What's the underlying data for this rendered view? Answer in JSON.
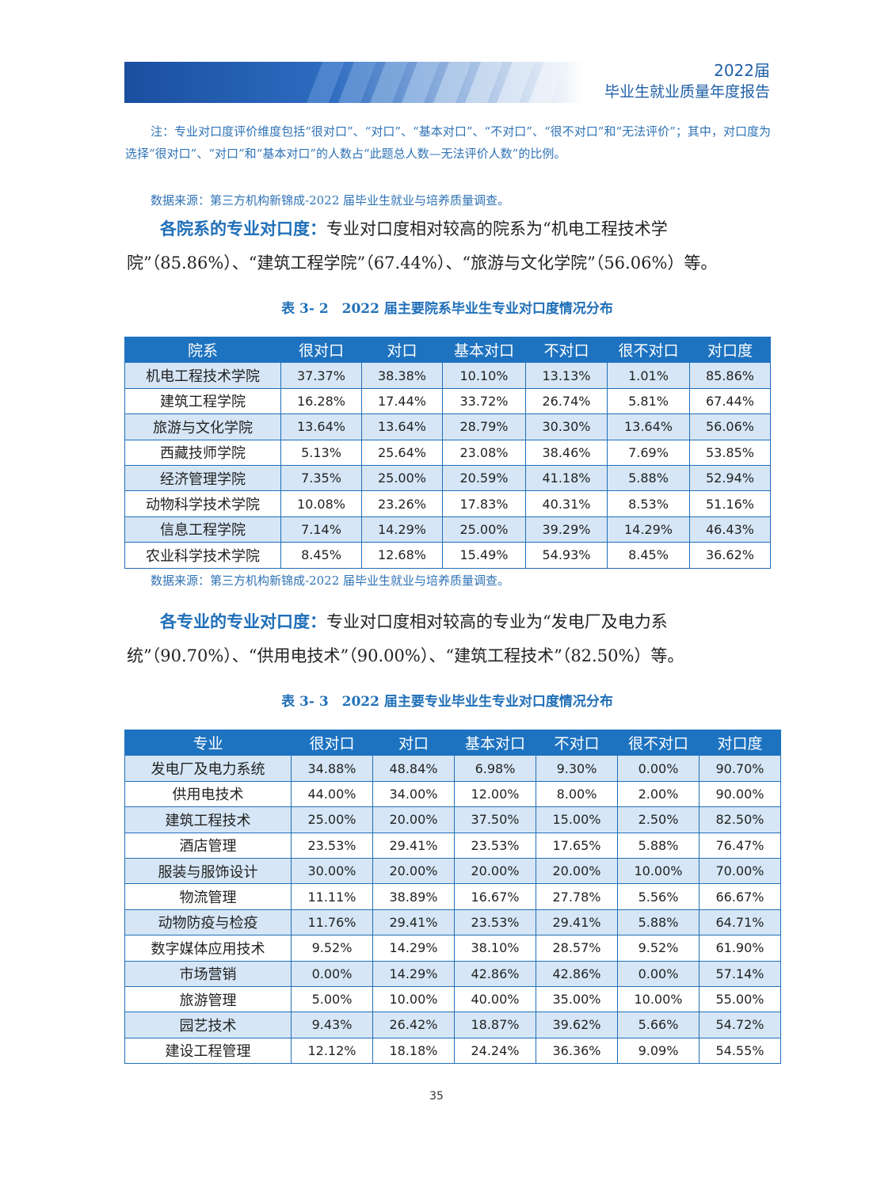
{
  "header": {
    "line1": "2022届",
    "line2": "毕业生就业质量年度报告"
  },
  "note1": "注：专业对口度评价维度包括“很对口”、“对口”、“基本对口”、“不对口”、“很不对口”和“无法评价”；其中，对口度为选择“很对口”、“对口”和“基本对口”的人数占“此题总人数—无法评价人数”的比例。",
  "source1": "数据来源：第三方机构新锦成-2022 届毕业生就业与培养质量调查。",
  "para1": {
    "lead": "各院系的专业对口度：",
    "text": "专业对口度相对较高的院系为“机电工程技术学院”（85.86%）、“建筑工程学院”（67.44%）、“旅游与文化学院”（56.06%）等。"
  },
  "table2": {
    "caption": "表 3- 2　2022 届主要院系毕业生专业对口度情况分布",
    "headers": [
      "院系",
      "很对口",
      "对口",
      "基本对口",
      "不对口",
      "很不对口",
      "对口度"
    ],
    "rows": [
      [
        "机电工程技术学院",
        "37.37%",
        "38.38%",
        "10.10%",
        "13.13%",
        "1.01%",
        "85.86%"
      ],
      [
        "建筑工程学院",
        "16.28%",
        "17.44%",
        "33.72%",
        "26.74%",
        "5.81%",
        "67.44%"
      ],
      [
        "旅游与文化学院",
        "13.64%",
        "13.64%",
        "28.79%",
        "30.30%",
        "13.64%",
        "56.06%"
      ],
      [
        "西藏技师学院",
        "5.13%",
        "25.64%",
        "23.08%",
        "38.46%",
        "7.69%",
        "53.85%"
      ],
      [
        "经济管理学院",
        "7.35%",
        "25.00%",
        "20.59%",
        "41.18%",
        "5.88%",
        "52.94%"
      ],
      [
        "动物科学技术学院",
        "10.08%",
        "23.26%",
        "17.83%",
        "40.31%",
        "8.53%",
        "51.16%"
      ],
      [
        "信息工程学院",
        "7.14%",
        "14.29%",
        "25.00%",
        "39.29%",
        "14.29%",
        "46.43%"
      ],
      [
        "农业科学技术学院",
        "8.45%",
        "12.68%",
        "15.49%",
        "54.93%",
        "8.45%",
        "36.62%"
      ]
    ]
  },
  "source2": "数据来源：第三方机构新锦成-2022 届毕业生就业与培养质量调查。",
  "para2": {
    "lead": "各专业的专业对口度：",
    "text": "专业对口度相对较高的专业为“发电厂及电力系统”（90.70%）、“供用电技术”（90.00%）、“建筑工程技术”（82.50%）等。"
  },
  "table3": {
    "caption": "表 3- 3　2022 届主要专业毕业生专业对口度情况分布",
    "headers": [
      "专业",
      "很对口",
      "对口",
      "基本对口",
      "不对口",
      "很不对口",
      "对口度"
    ],
    "rows": [
      [
        "发电厂及电力系统",
        "34.88%",
        "48.84%",
        "6.98%",
        "9.30%",
        "0.00%",
        "90.70%"
      ],
      [
        "供用电技术",
        "44.00%",
        "34.00%",
        "12.00%",
        "8.00%",
        "2.00%",
        "90.00%"
      ],
      [
        "建筑工程技术",
        "25.00%",
        "20.00%",
        "37.50%",
        "15.00%",
        "2.50%",
        "82.50%"
      ],
      [
        "酒店管理",
        "23.53%",
        "29.41%",
        "23.53%",
        "17.65%",
        "5.88%",
        "76.47%"
      ],
      [
        "服装与服饰设计",
        "30.00%",
        "20.00%",
        "20.00%",
        "20.00%",
        "10.00%",
        "70.00%"
      ],
      [
        "物流管理",
        "11.11%",
        "38.89%",
        "16.67%",
        "27.78%",
        "5.56%",
        "66.67%"
      ],
      [
        "动物防疫与检疫",
        "11.76%",
        "29.41%",
        "23.53%",
        "29.41%",
        "5.88%",
        "64.71%"
      ],
      [
        "数字媒体应用技术",
        "9.52%",
        "14.29%",
        "38.10%",
        "28.57%",
        "9.52%",
        "61.90%"
      ],
      [
        "市场营销",
        "0.00%",
        "14.29%",
        "42.86%",
        "42.86%",
        "0.00%",
        "57.14%"
      ],
      [
        "旅游管理",
        "5.00%",
        "10.00%",
        "40.00%",
        "35.00%",
        "10.00%",
        "55.00%"
      ],
      [
        "园艺技术",
        "9.43%",
        "26.42%",
        "18.87%",
        "39.62%",
        "5.66%",
        "54.72%"
      ],
      [
        "建设工程管理",
        "12.12%",
        "18.18%",
        "24.24%",
        "36.36%",
        "9.09%",
        "54.55%"
      ]
    ]
  },
  "page_number": "35",
  "colors": {
    "header_blue": "#1e73c0",
    "row_tint": "#d6e6f6",
    "accent_text": "#1f6fb8"
  }
}
